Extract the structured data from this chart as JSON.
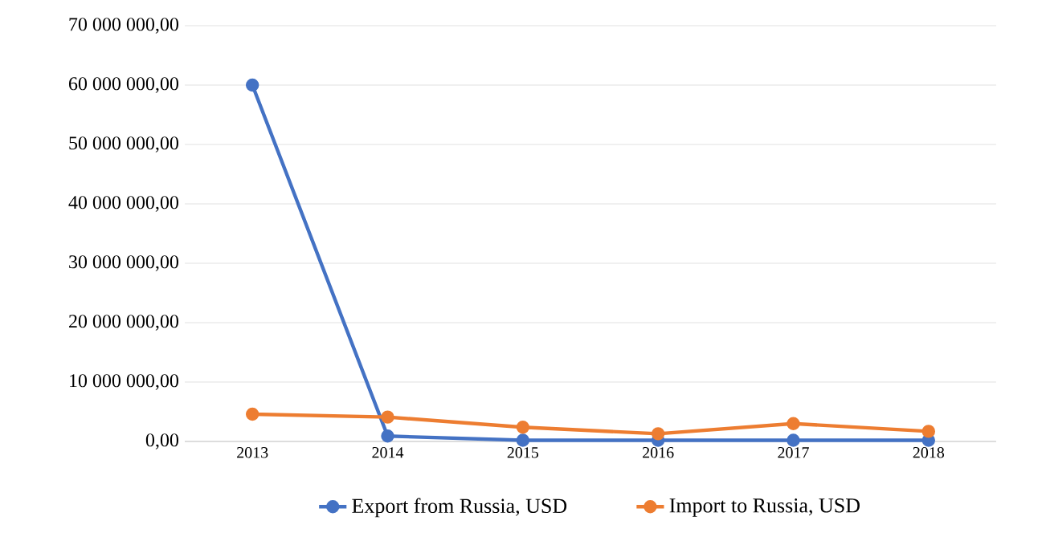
{
  "chart_data": {
    "type": "line",
    "categories": [
      "2013",
      "2014",
      "2015",
      "2016",
      "2017",
      "2018"
    ],
    "series": [
      {
        "name": "Export from Russia, USD",
        "color": "#4472c4",
        "values": [
          60000000,
          900000,
          200000,
          200000,
          200000,
          200000
        ]
      },
      {
        "name": "Import to Russia, USD",
        "color": "#ed7d31",
        "values": [
          4600000,
          4100000,
          2400000,
          1300000,
          3000000,
          1700000
        ]
      }
    ],
    "ylim": [
      0,
      70000000
    ],
    "yticks": [
      {
        "value": 0,
        "label": "0,00"
      },
      {
        "value": 10000000,
        "label": "10 000 000,00"
      },
      {
        "value": 20000000,
        "label": "20 000 000,00"
      },
      {
        "value": 30000000,
        "label": "30 000 000,00"
      },
      {
        "value": 40000000,
        "label": "40 000 000,00"
      },
      {
        "value": 50000000,
        "label": "50 000 000,00"
      },
      {
        "value": 60000000,
        "label": "60 000 000,00"
      },
      {
        "value": 70000000,
        "label": "70 000 000,00"
      }
    ],
    "grid": "y",
    "legend": "bottom",
    "marker": "circle",
    "line_style": "solid"
  }
}
